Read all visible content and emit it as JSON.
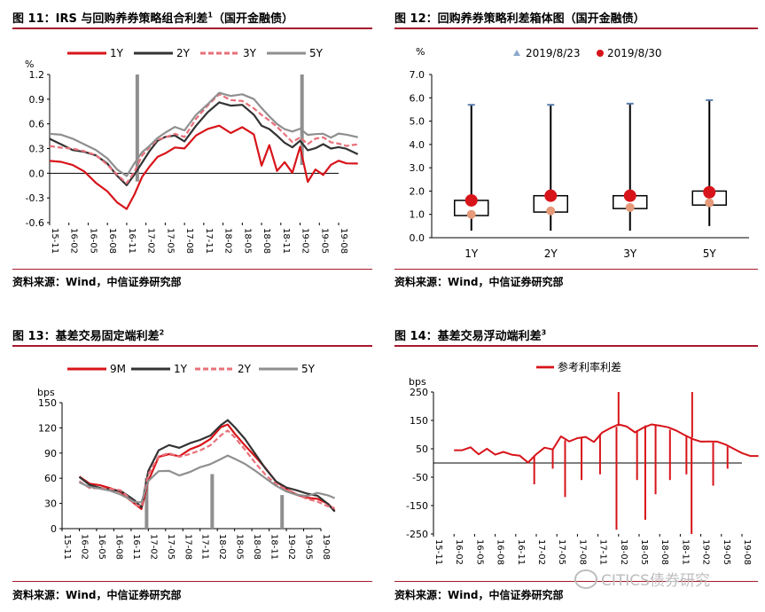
{
  "panels": [
    {
      "title": "图 11：IRS 与回购养券策略组合利差",
      "sup": "1",
      "title_suffix": "（国开金融债）",
      "source": "资料来源：Wind，中信证券研究部"
    },
    {
      "title": "图 12：回购养券策略利差箱体图（国开金融债）",
      "sup": "",
      "title_suffix": "",
      "source": "资料来源：Wind，中信证券研究部"
    },
    {
      "title": "图 13：基差交易固定端利差",
      "sup": "2",
      "title_suffix": "",
      "source": "资料来源：Wind，中信证券研究部"
    },
    {
      "title": "图 14：基差交易浮动端利差",
      "sup": "3",
      "title_suffix": "",
      "source": "资料来源：Wind，中信证券研究部"
    }
  ],
  "watermark": "CITICS债券研究",
  "colors": {
    "red": "#d7141a",
    "dark": "#333333",
    "pink": "#e8707a",
    "gray": "#8f8f8f",
    "rule": "#a6192e",
    "orange": "#e59a7a",
    "blue": "#8ea9cc"
  },
  "chart_data": [
    {
      "type": "line",
      "unit": "%",
      "ylim": [
        -0.6,
        1.2
      ],
      "yticks": [
        "-0.6",
        "-0.3",
        "0.0",
        "0.3",
        "0.6",
        "0.9",
        "1.2"
      ],
      "xticks": [
        "15-11",
        "16-02",
        "16-05",
        "16-08",
        "16-11",
        "17-02",
        "17-05",
        "17-08",
        "17-11",
        "18-02",
        "18-05",
        "18-08",
        "18-11",
        "19-02",
        "19-05",
        "19-08"
      ],
      "series": [
        {
          "name": "1Y",
          "color": "#d7141a",
          "style": "solid",
          "width": 2.2,
          "x": [
            0,
            0.6,
            1.2,
            1.8,
            2.4,
            3.0,
            3.5,
            4.0,
            4.4,
            4.8,
            5.2,
            5.6,
            6.0,
            6.5,
            7.0,
            7.6,
            8.2,
            8.8,
            9.4,
            10.0,
            10.6,
            11.0,
            11.4,
            11.8,
            12.2,
            12.6,
            13.0,
            13.4,
            13.8,
            14.2,
            14.6,
            15.0,
            15.4,
            16.0
          ],
          "y": [
            0.15,
            0.12,
            0.08,
            0.02,
            -0.1,
            -0.2,
            -0.35,
            -0.45,
            -0.28,
            -0.05,
            0.1,
            0.22,
            0.25,
            0.3,
            0.28,
            0.45,
            0.55,
            0.6,
            0.5,
            0.55,
            0.45,
            0.08,
            0.35,
            0.05,
            0.15,
            0.0,
            0.3,
            -0.12,
            0.05,
            0.0,
            0.12,
            0.15,
            0.1,
            0.1
          ]
        },
        {
          "name": "2Y",
          "color": "#333333",
          "style": "solid",
          "width": 2.2,
          "x": [
            0,
            0.6,
            1.2,
            1.8,
            2.4,
            3.0,
            3.5,
            4.0,
            4.4,
            4.8,
            5.2,
            5.6,
            6.0,
            6.5,
            7.0,
            7.6,
            8.2,
            8.8,
            9.4,
            10.0,
            10.6,
            11.0,
            11.4,
            11.8,
            12.2,
            12.6,
            13.0,
            13.4,
            13.8,
            14.2,
            14.6,
            15.0,
            15.4,
            16.0
          ],
          "y": [
            0.4,
            0.35,
            0.3,
            0.28,
            0.22,
            0.1,
            -0.05,
            -0.15,
            0.0,
            0.15,
            0.28,
            0.38,
            0.42,
            0.45,
            0.4,
            0.6,
            0.75,
            0.85,
            0.8,
            0.82,
            0.72,
            0.6,
            0.55,
            0.45,
            0.35,
            0.3,
            0.4,
            0.3,
            0.32,
            0.35,
            0.28,
            0.3,
            0.3,
            0.25
          ]
        },
        {
          "name": "3Y",
          "color": "#e8707a",
          "style": "dashed",
          "width": 2.2,
          "x": [
            0,
            0.6,
            1.2,
            1.8,
            2.4,
            3.0,
            3.5,
            4.0,
            4.4,
            4.8,
            5.2,
            5.6,
            6.0,
            6.5,
            7.0,
            7.6,
            8.2,
            8.8,
            9.4,
            10.0,
            10.6,
            11.0,
            11.4,
            11.8,
            12.2,
            12.6,
            13.0,
            13.4,
            13.8,
            14.2,
            14.6,
            15.0,
            15.4,
            16.0
          ],
          "y": [
            0.35,
            0.33,
            0.3,
            0.25,
            0.2,
            0.1,
            0.0,
            -0.1,
            0.02,
            0.2,
            0.3,
            0.4,
            0.45,
            0.5,
            0.45,
            0.65,
            0.8,
            0.95,
            0.9,
            0.9,
            0.8,
            0.7,
            0.62,
            0.55,
            0.48,
            0.4,
            0.45,
            0.35,
            0.4,
            0.42,
            0.38,
            0.38,
            0.35,
            0.35
          ]
        },
        {
          "name": "5Y",
          "color": "#8f8f8f",
          "style": "solid",
          "width": 2.2,
          "x": [
            0,
            0.6,
            1.2,
            1.8,
            2.4,
            3.0,
            3.5,
            4.0,
            4.4,
            4.8,
            5.2,
            5.6,
            6.0,
            6.5,
            7.0,
            7.6,
            8.2,
            8.8,
            9.4,
            10.0,
            10.6,
            11.0,
            11.4,
            11.8,
            12.2,
            12.6,
            13.0,
            13.4,
            13.8,
            14.2,
            14.6,
            15.0,
            15.4,
            16.0
          ],
          "y": [
            0.48,
            0.45,
            0.4,
            0.35,
            0.3,
            0.2,
            0.05,
            -0.05,
            0.1,
            0.25,
            0.35,
            0.45,
            0.5,
            0.55,
            0.5,
            0.7,
            0.85,
            1.0,
            0.95,
            0.95,
            0.88,
            0.78,
            0.7,
            0.62,
            0.55,
            0.5,
            0.52,
            0.45,
            0.48,
            0.5,
            0.45,
            0.48,
            0.45,
            0.42
          ]
        }
      ],
      "spikes": [
        {
          "x": 4.55,
          "y0": -0.1,
          "y1": 1.2
        },
        {
          "x": 13.1,
          "y0": 0.1,
          "y1": 1.2
        }
      ]
    },
    {
      "type": "box",
      "unit": "%",
      "ylim": [
        0,
        7
      ],
      "yticks": [
        "0.0",
        "1.0",
        "2.0",
        "3.0",
        "4.0",
        "5.0",
        "6.0",
        "7.0"
      ],
      "categories": [
        "1Y",
        "2Y",
        "3Y",
        "5Y"
      ],
      "legend": [
        "2019/8/23",
        "2019/8/30"
      ],
      "boxes": [
        {
          "min": 0.3,
          "q1": 0.95,
          "median": 1.45,
          "q3": 1.6,
          "max": 5.7,
          "point_823": 1.0,
          "point_830": 1.6,
          "low_marker": 0.9
        },
        {
          "min": 0.3,
          "q1": 1.1,
          "median": 1.4,
          "q3": 1.8,
          "max": 5.7,
          "point_823": 1.15,
          "point_830": 1.8,
          "low_marker": 1.1
        },
        {
          "min": 0.3,
          "q1": 1.25,
          "median": 1.55,
          "q3": 1.8,
          "max": 5.75,
          "point_823": 1.3,
          "point_830": 1.8,
          "low_marker": 1.25
        },
        {
          "min": 0.5,
          "q1": 1.4,
          "median": 1.75,
          "q3": 2.0,
          "max": 5.9,
          "point_823": 1.5,
          "point_830": 1.95,
          "low_marker": 1.4
        }
      ]
    },
    {
      "type": "line",
      "unit": "bps",
      "ylim": [
        0,
        150
      ],
      "yticks": [
        "0",
        "30",
        "60",
        "90",
        "120",
        "150"
      ],
      "xticks": [
        "15-11",
        "16-02",
        "16-05",
        "16-08",
        "16-11",
        "17-02",
        "17-05",
        "17-08",
        "17-11",
        "18-02",
        "18-05",
        "18-08",
        "18-11",
        "19-02",
        "19-05",
        "19-08"
      ],
      "series": [
        {
          "name": "9M",
          "color": "#d7141a",
          "style": "solid",
          "width": 2.2,
          "x": [
            1.0,
            1.6,
            2.2,
            2.8,
            3.4,
            3.8,
            4.2,
            4.6,
            5.0,
            5.6,
            6.2,
            6.8,
            7.4,
            8.0,
            8.6,
            9.2,
            9.6,
            10.0,
            10.6,
            11.2,
            11.8,
            12.4,
            13.0,
            13.6,
            14.2,
            14.8,
            15.4,
            15.8
          ],
          "y": [
            62,
            52,
            50,
            48,
            45,
            38,
            30,
            22,
            55,
            85,
            90,
            88,
            95,
            98,
            105,
            120,
            125,
            115,
            100,
            85,
            70,
            55,
            48,
            42,
            38,
            35,
            28,
            20
          ]
        },
        {
          "name": "1Y",
          "color": "#333333",
          "style": "solid",
          "width": 2.2,
          "x": [
            1.0,
            1.6,
            2.2,
            2.8,
            3.4,
            3.8,
            4.2,
            4.6,
            5.0,
            5.6,
            6.2,
            6.8,
            7.4,
            8.0,
            8.6,
            9.2,
            9.6,
            10.0,
            10.6,
            11.2,
            11.8,
            12.4,
            13.0,
            13.6,
            14.2,
            14.8,
            15.4,
            15.8
          ],
          "y": [
            60,
            52,
            50,
            48,
            45,
            38,
            32,
            25,
            70,
            95,
            100,
            95,
            100,
            105,
            112,
            125,
            130,
            120,
            105,
            88,
            72,
            58,
            50,
            45,
            40,
            38,
            30,
            22
          ]
        },
        {
          "name": "2Y",
          "color": "#e8707a",
          "style": "dashed",
          "width": 2.2,
          "x": [
            1.0,
            1.6,
            2.2,
            2.8,
            3.4,
            3.8,
            4.2,
            4.6,
            5.0,
            5.6,
            6.2,
            6.8,
            7.4,
            8.0,
            8.6,
            9.2,
            9.6,
            10.0,
            10.6,
            11.2,
            11.8,
            12.4,
            13.0,
            13.6,
            14.2,
            14.8,
            15.4,
            15.8
          ],
          "y": [
            58,
            50,
            48,
            46,
            44,
            38,
            30,
            28,
            65,
            85,
            88,
            85,
            90,
            95,
            100,
            110,
            115,
            108,
            95,
            80,
            65,
            52,
            45,
            40,
            36,
            34,
            28,
            24
          ]
        },
        {
          "name": "5Y",
          "color": "#8f8f8f",
          "style": "solid",
          "width": 2.2,
          "x": [
            1.0,
            1.6,
            2.2,
            2.8,
            3.4,
            3.8,
            4.2,
            4.6,
            5.0,
            5.6,
            6.2,
            6.8,
            7.4,
            8.0,
            8.6,
            9.2,
            9.6,
            10.0,
            10.6,
            11.2,
            11.8,
            12.4,
            13.0,
            13.6,
            14.2,
            14.8,
            15.4,
            15.8
          ],
          "y": [
            55,
            48,
            46,
            45,
            42,
            38,
            32,
            30,
            55,
            68,
            70,
            65,
            68,
            72,
            75,
            82,
            88,
            85,
            78,
            68,
            58,
            50,
            45,
            42,
            40,
            42,
            38,
            35
          ]
        }
      ],
      "spikes": [
        {
          "x": 4.9,
          "y0": 0,
          "y1": 60
        },
        {
          "x": 8.7,
          "y0": 0,
          "y1": 65
        },
        {
          "x": 12.75,
          "y0": 0,
          "y1": 40
        }
      ]
    },
    {
      "type": "line",
      "unit": "bps",
      "ylim": [
        -250,
        250
      ],
      "yticks": [
        "-250",
        "-150",
        "-50",
        "50",
        "150",
        "250"
      ],
      "xticks": [
        "15-11",
        "16-02",
        "16-05",
        "16-08",
        "16-11",
        "17-02",
        "17-05",
        "17-08",
        "17-11",
        "18-02",
        "18-05",
        "18-08",
        "18-11",
        "19-02",
        "19-05",
        "19-08"
      ],
      "series": [
        {
          "name": "参考利率利差",
          "color": "#d7141a",
          "style": "solid",
          "width": 2,
          "x": [
            1.0,
            1.4,
            1.8,
            2.2,
            2.6,
            3.0,
            3.4,
            3.8,
            4.2,
            4.6,
            5.0,
            5.4,
            5.8,
            6.2,
            6.6,
            7.0,
            7.4,
            7.8,
            8.2,
            8.6,
            9.0,
            9.4,
            9.8,
            10.2,
            10.6,
            11.0,
            11.4,
            11.8,
            12.2,
            12.6,
            13.0,
            13.4,
            13.8,
            14.2,
            14.6,
            15.0,
            15.4,
            15.8
          ],
          "y": [
            45,
            40,
            50,
            30,
            55,
            35,
            40,
            25,
            20,
            0,
            35,
            60,
            50,
            90,
            70,
            85,
            95,
            80,
            110,
            120,
            130,
            125,
            110,
            130,
            140,
            130,
            120,
            110,
            100,
            90,
            80,
            75,
            70,
            60,
            50,
            40,
            30,
            25
          ]
        }
      ],
      "dips": [
        {
          "x": 4.9,
          "y": -75
        },
        {
          "x": 5.8,
          "y": -20
        },
        {
          "x": 6.4,
          "y": -120
        },
        {
          "x": 7.2,
          "y": -60
        },
        {
          "x": 8.1,
          "y": -40
        },
        {
          "x": 8.9,
          "y": -235
        },
        {
          "x": 9.0,
          "y": 250
        },
        {
          "x": 9.9,
          "y": -60
        },
        {
          "x": 10.3,
          "y": -200
        },
        {
          "x": 10.8,
          "y": -110
        },
        {
          "x": 11.5,
          "y": -60
        },
        {
          "x": 12.3,
          "y": -40
        },
        {
          "x": 12.55,
          "y": -250
        },
        {
          "x": 12.58,
          "y": 250
        },
        {
          "x": 13.6,
          "y": -80
        },
        {
          "x": 14.3,
          "y": -20
        }
      ]
    }
  ]
}
